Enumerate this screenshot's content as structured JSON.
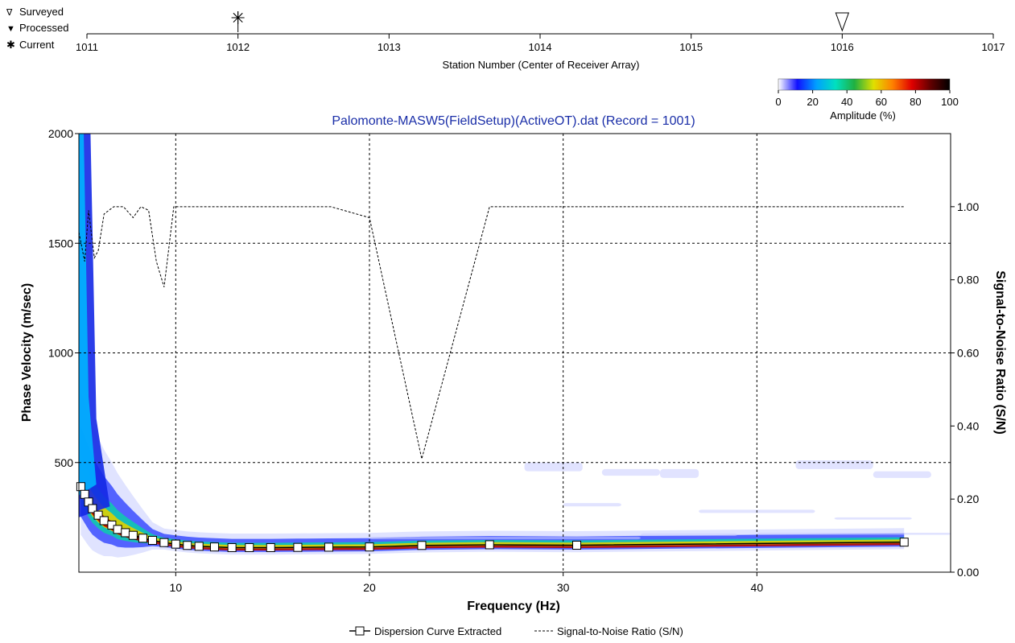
{
  "station_strip": {
    "legend": [
      "Surveyed",
      "Processed",
      "Current"
    ],
    "ticks": [
      "1011",
      "1012",
      "1013",
      "1014",
      "1015",
      "1016",
      "1017"
    ],
    "range": [
      1011,
      1017
    ],
    "xlabel": "Station Number (Center of Receiver Array)",
    "current_station": 1012,
    "surveyed_station": 1016
  },
  "colorbar": {
    "label": "Amplitude (%)",
    "ticks": [
      "0",
      "20",
      "40",
      "60",
      "80",
      "100"
    ],
    "colors": [
      "#ffffff",
      "#1010ff",
      "#00a0ff",
      "#00e0c0",
      "#20b040",
      "#e0e000",
      "#ff8000",
      "#e00000",
      "#600000",
      "#000000"
    ]
  },
  "chart_data": {
    "type": "scatter",
    "title": "Palomonte-MASW5(FieldSetup)(ActiveOT).dat (Record = 1001)",
    "xlabel": "Frequency (Hz)",
    "ylabel": "Phase Velocity (m/sec)",
    "y2label": "Signal-to-Noise Ratio (S/N)",
    "xlim": [
      5,
      50
    ],
    "ylim": [
      0,
      2000
    ],
    "y2lim": [
      0,
      1.2
    ],
    "x_ticks": [
      "10",
      "20",
      "30",
      "40"
    ],
    "y_ticks": [
      "500",
      "1000",
      "1500",
      "2000"
    ],
    "y2_ticks": [
      "0.00",
      "0.20",
      "0.40",
      "0.60",
      "0.80",
      "1.00"
    ],
    "grid": true,
    "legend": [
      "Dispersion Curve Extracted",
      "Signal-to-Noise Ratio (S/N)"
    ],
    "series": [
      {
        "name": "Dispersion Curve Extracted",
        "axis": "left",
        "x": [
          5.1,
          5.3,
          5.5,
          5.7,
          6.0,
          6.3,
          6.7,
          7.0,
          7.4,
          7.8,
          8.3,
          8.8,
          9.4,
          10.0,
          10.6,
          11.2,
          12.0,
          12.9,
          13.8,
          14.9,
          16.3,
          17.9,
          20.0,
          22.7,
          26.2,
          30.7,
          47.6
        ],
        "y": [
          390,
          355,
          320,
          290,
          260,
          235,
          215,
          195,
          180,
          168,
          155,
          145,
          135,
          128,
          122,
          118,
          115,
          112,
          112,
          112,
          113,
          114,
          115,
          122,
          125,
          123,
          137
        ]
      },
      {
        "name": "Signal-to-Noise Ratio (S/N)",
        "axis": "right",
        "x": [
          5.0,
          5.3,
          5.5,
          5.8,
          6.0,
          6.3,
          6.8,
          7.3,
          7.8,
          8.2,
          8.6,
          9.0,
          9.4,
          9.9,
          10.5,
          15.0,
          18.0,
          20.0,
          22.7,
          26.2,
          30.0,
          40.0,
          47.6
        ],
        "y": [
          0.93,
          0.85,
          0.99,
          0.86,
          0.88,
          0.98,
          1.0,
          1.0,
          0.97,
          1.0,
          0.99,
          0.85,
          0.78,
          1.0,
          1.0,
          1.0,
          1.0,
          0.97,
          0.31,
          1.0,
          1.0,
          1.0,
          1.0
        ]
      }
    ]
  }
}
